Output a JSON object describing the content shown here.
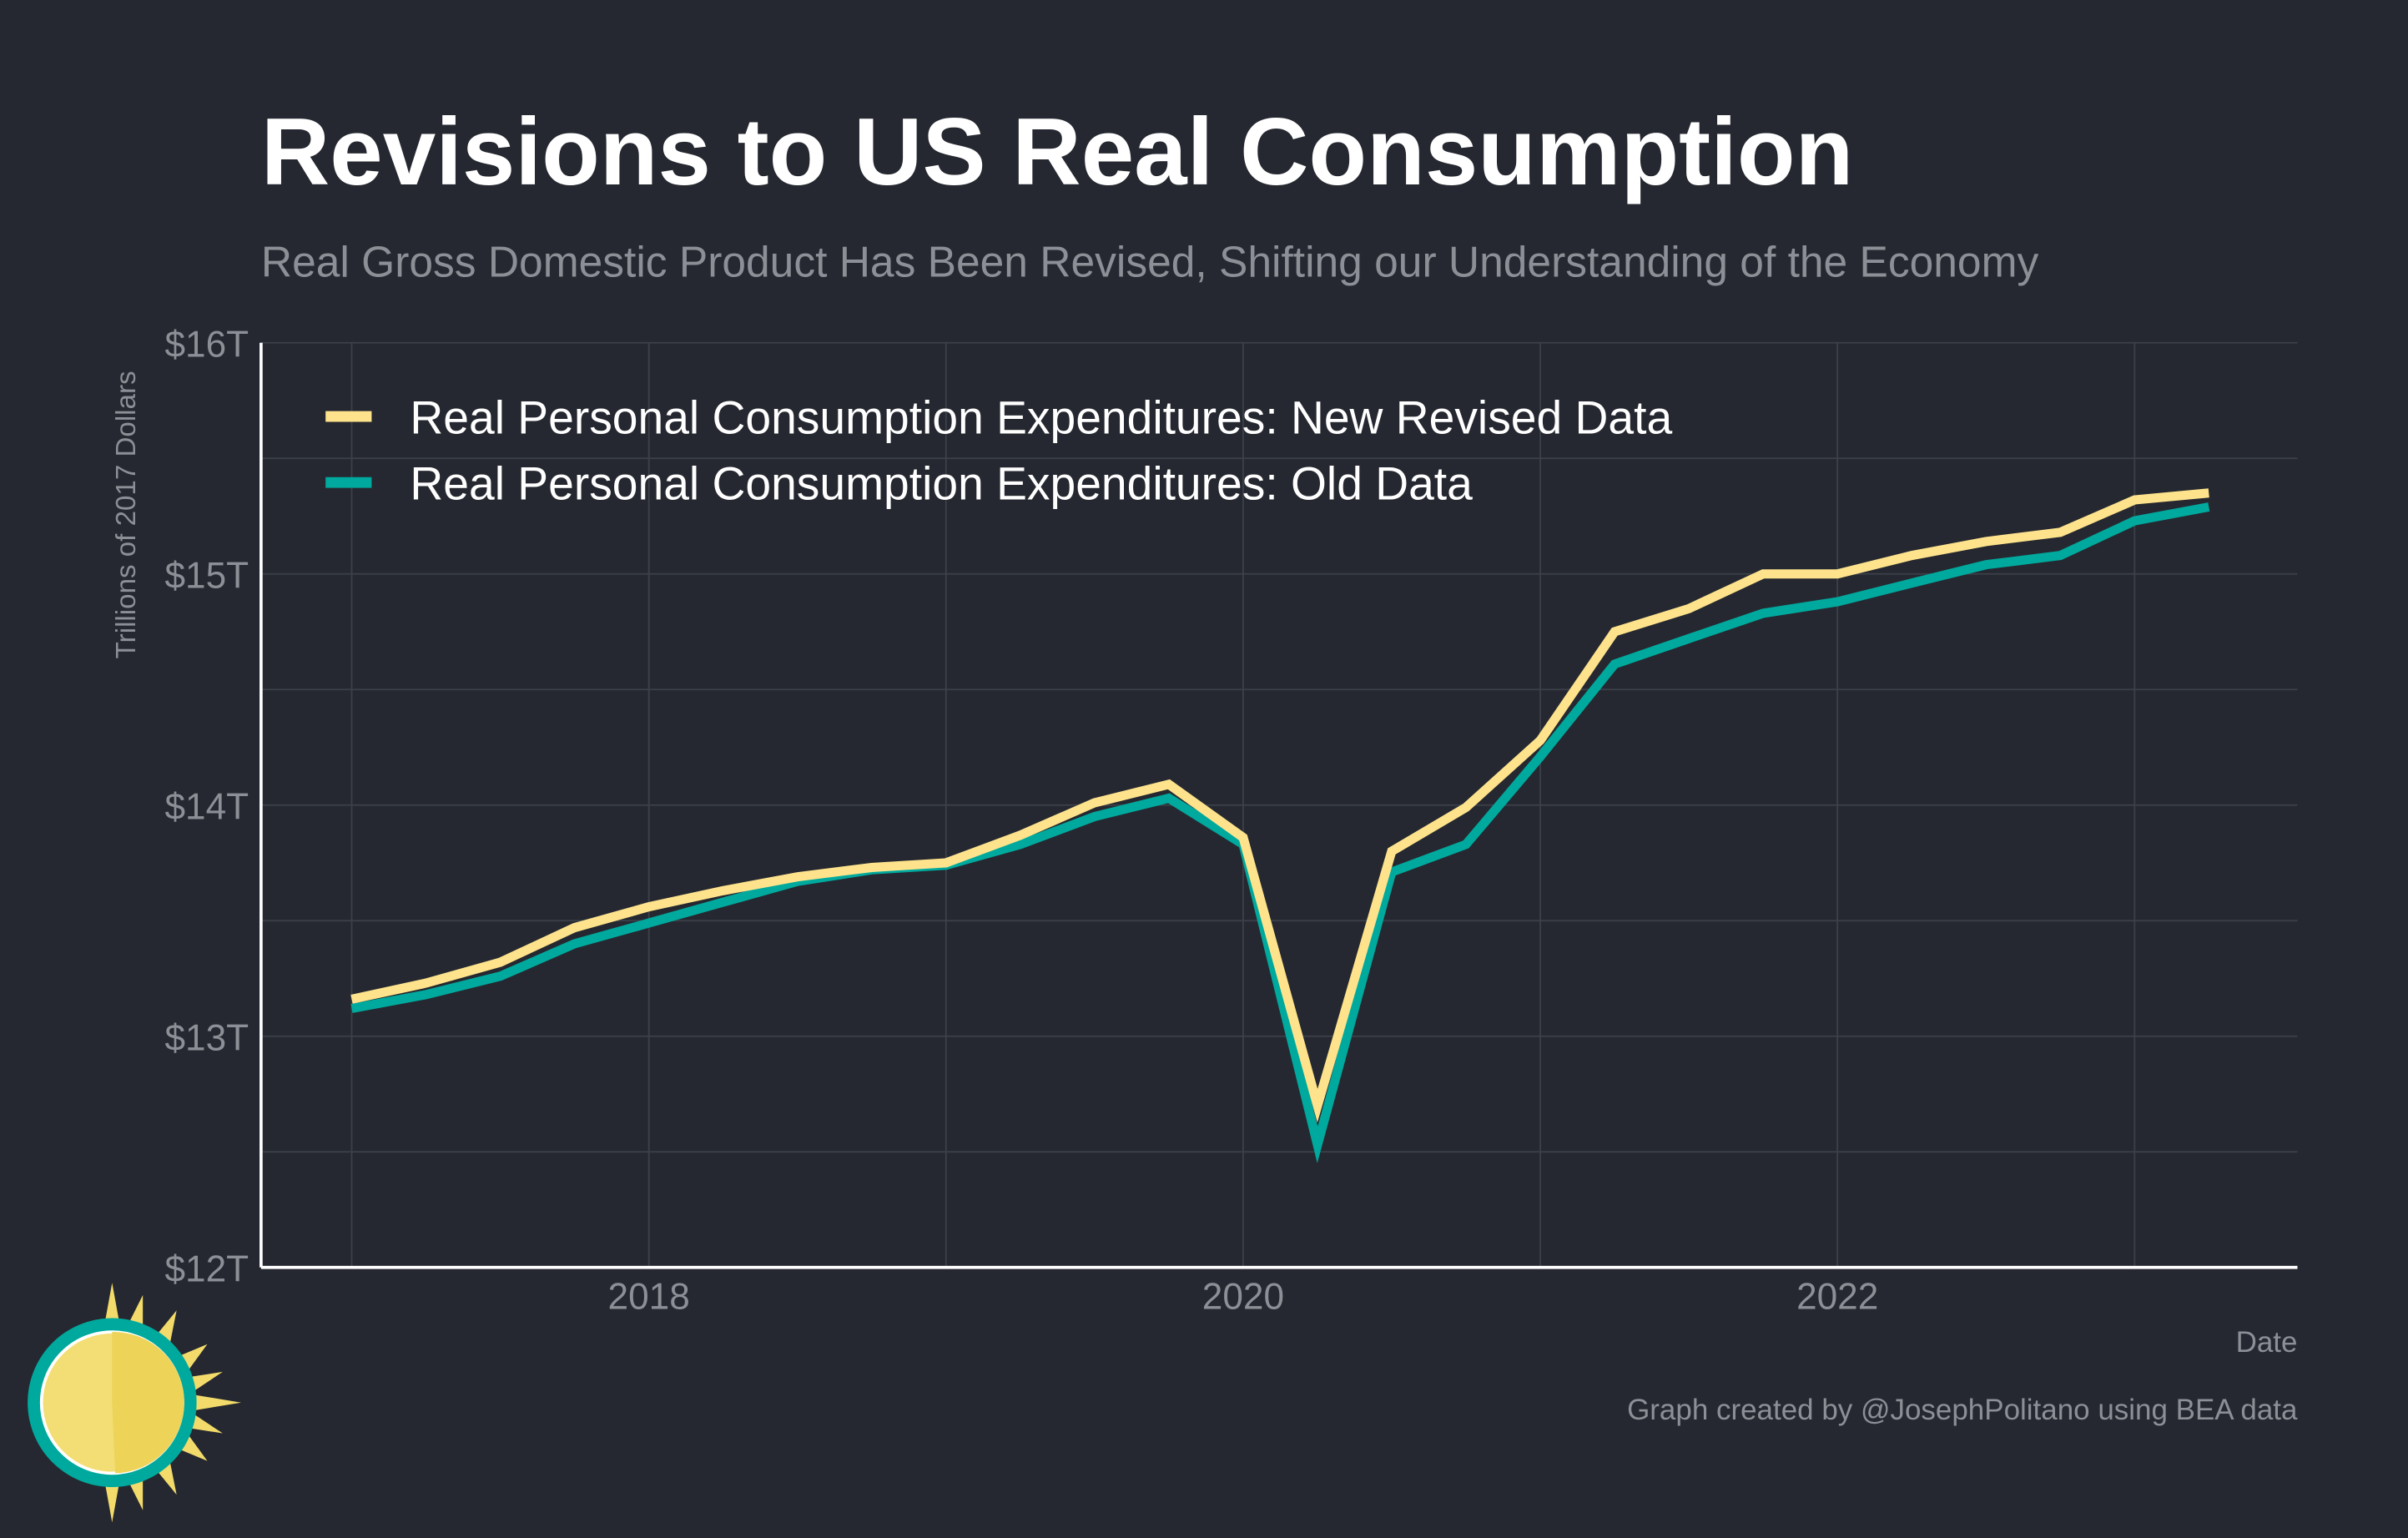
{
  "chart_data": {
    "type": "line",
    "title": "Revisions to US Real Consumption",
    "subtitle": "Real Gross Domestic Product Has Been Revised, Shifting our Understanding of the Economy",
    "xlabel": "Date",
    "ylabel": "Trillions of 2017 Dollars",
    "caption": "Graph created by @JosephPolitano using BEA data",
    "ylim": [
      12,
      16
    ],
    "yticks": [
      12,
      13,
      14,
      15,
      16
    ],
    "ytick_labels": [
      "$12T",
      "$13T",
      "$14T",
      "$15T",
      "$16T"
    ],
    "xticks": [
      2018,
      2020,
      2022
    ],
    "xtick_labels": [
      "2018",
      "2020",
      "2022"
    ],
    "grid": true,
    "legend_position": "top-left",
    "x": [
      "2017-Q1",
      "2017-Q2",
      "2017-Q3",
      "2017-Q4",
      "2018-Q1",
      "2018-Q2",
      "2018-Q3",
      "2018-Q4",
      "2019-Q1",
      "2019-Q2",
      "2019-Q3",
      "2019-Q4",
      "2020-Q1",
      "2020-Q2",
      "2020-Q3",
      "2020-Q4",
      "2021-Q1",
      "2021-Q2",
      "2021-Q3",
      "2021-Q4",
      "2022-Q1",
      "2022-Q2",
      "2022-Q3",
      "2022-Q4",
      "2023-Q1",
      "2023-Q2"
    ],
    "series": [
      {
        "name": "Real Personal Consumption Expenditures: New Revised Data",
        "color": "#FEE38C",
        "values": [
          13.16,
          13.23,
          13.32,
          13.47,
          13.56,
          13.63,
          13.69,
          13.73,
          13.75,
          13.87,
          14.01,
          14.09,
          13.86,
          12.7,
          13.8,
          13.99,
          14.28,
          14.75,
          14.85,
          15.0,
          15.0,
          15.08,
          15.14,
          15.18,
          15.32,
          15.35
        ]
      },
      {
        "name": "Real Personal Consumption Expenditures: Old Data",
        "color": "#00A99D",
        "values": [
          13.12,
          13.18,
          13.26,
          13.4,
          13.49,
          13.58,
          13.67,
          13.72,
          13.74,
          13.83,
          13.95,
          14.03,
          13.83,
          12.53,
          13.71,
          13.83,
          14.21,
          14.61,
          14.72,
          14.83,
          14.88,
          14.96,
          15.04,
          15.08,
          15.23,
          15.29
        ]
      }
    ]
  }
}
